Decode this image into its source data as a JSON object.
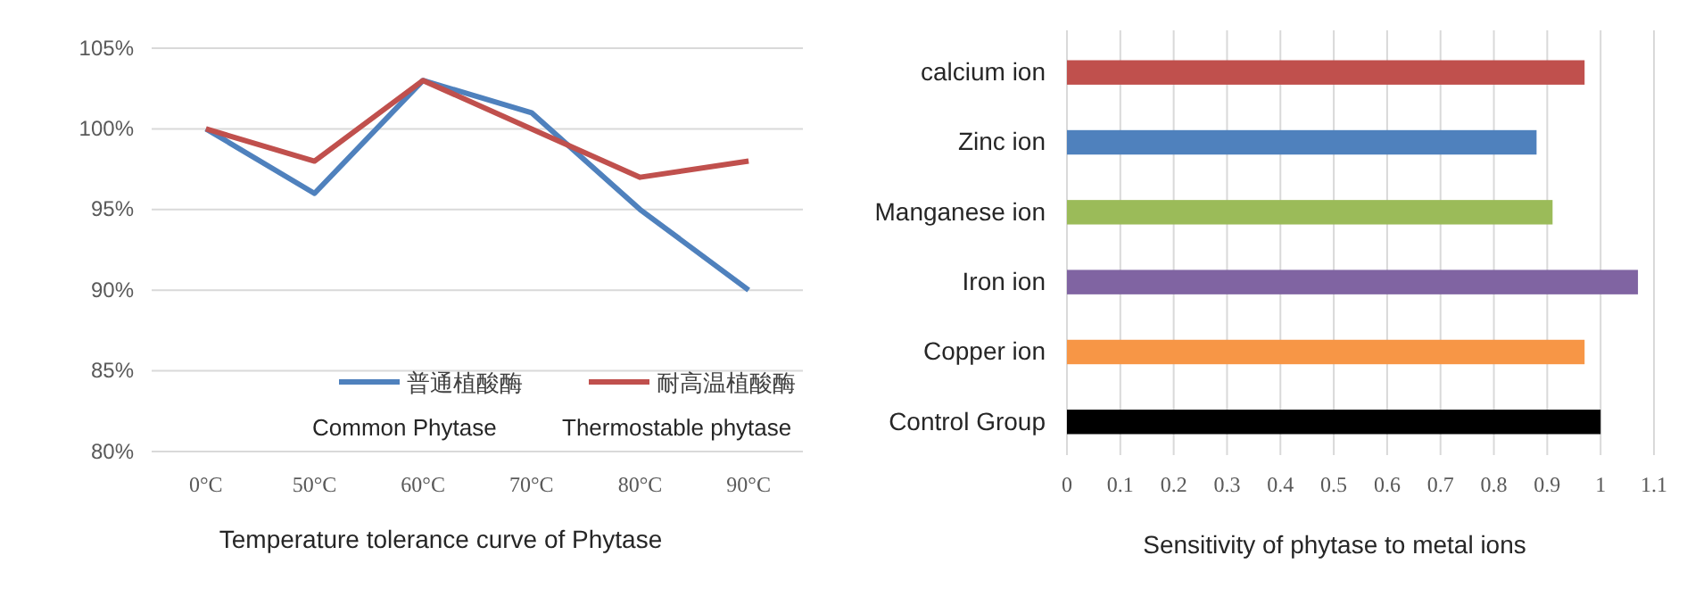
{
  "chart_data": [
    {
      "type": "line",
      "title": "Temperature tolerance curve of Phytase",
      "categories": [
        "0°C",
        "50°C",
        "60°C",
        "70°C",
        "80°C",
        "90°C"
      ],
      "series": [
        {
          "name": "普通植酸酶",
          "color": "#4f81bd",
          "values": [
            100,
            96,
            103,
            101,
            95,
            90
          ]
        },
        {
          "name": "耐高温植酸酶",
          "color": "#c0504d",
          "values": [
            100,
            98,
            103,
            100,
            97,
            98
          ]
        }
      ],
      "ylim": [
        80,
        105
      ],
      "yticks": [
        {
          "value": 80,
          "label": "80%"
        },
        {
          "value": 85,
          "label": "85%"
        },
        {
          "value": 90,
          "label": "90%"
        },
        {
          "value": 95,
          "label": "95%"
        },
        {
          "value": 100,
          "label": "100%"
        },
        {
          "value": 105,
          "label": "105%"
        }
      ],
      "grid": "y",
      "legend": "bottom right",
      "marker": "none",
      "line_style": "solid",
      "annotations": [
        "Common Phytase",
        "Thermostable phytase"
      ]
    },
    {
      "type": "bar",
      "orientation": "horizontal",
      "title": "Sensitivity of phytase to metal ions",
      "categories": [
        "calcium ion",
        "Zinc ion",
        "Manganese ion",
        "Iron ion",
        "Copper ion",
        "Control Group"
      ],
      "values": [
        0.97,
        0.88,
        0.91,
        1.07,
        0.97,
        1.0
      ],
      "colors": [
        "#c0504d",
        "#4f81bd",
        "#9bbb59",
        "#8064a2",
        "#f79646",
        "#000000"
      ],
      "xlim": [
        0,
        1.1
      ],
      "xticks": [
        0,
        0.1,
        0.2,
        0.3,
        0.4,
        0.5,
        0.6,
        0.7,
        0.8,
        0.9,
        1,
        1.1
      ],
      "grid": "x"
    }
  ]
}
